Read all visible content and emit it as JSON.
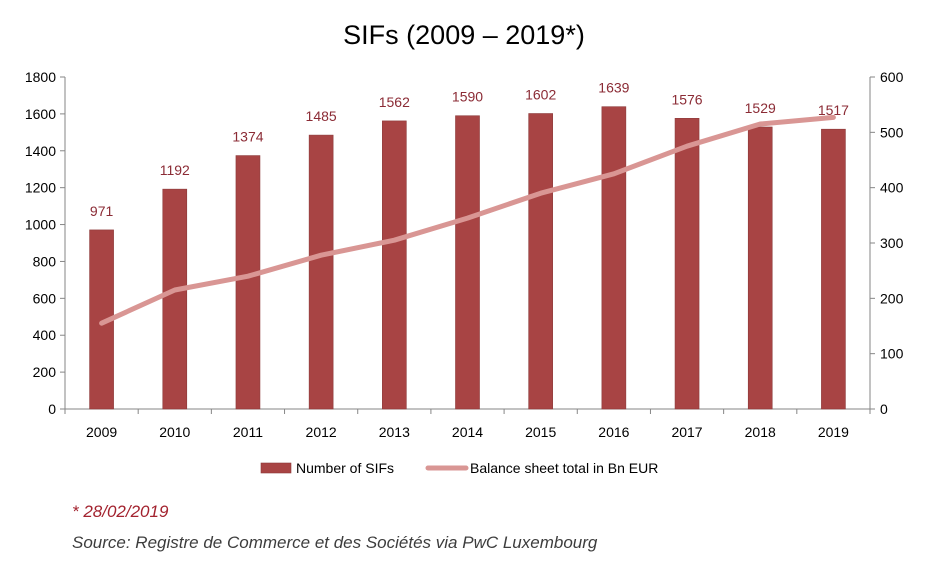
{
  "chart_data": {
    "type": "bar",
    "title": "SIFs (2009 – 2019*)",
    "categories": [
      "2009",
      "2010",
      "2011",
      "2012",
      "2013",
      "2014",
      "2015",
      "2016",
      "2017",
      "2018",
      "2019"
    ],
    "series": [
      {
        "name": "Number of SIFs",
        "type": "bar",
        "axis": "left",
        "color": "#a84444",
        "values": [
          971,
          1192,
          1374,
          1485,
          1562,
          1590,
          1602,
          1639,
          1576,
          1529,
          1517
        ]
      },
      {
        "name": "Balance sheet total in Bn EUR",
        "type": "line",
        "axis": "right",
        "color": "#d99694",
        "values": [
          155,
          215,
          240,
          278,
          305,
          345,
          390,
          425,
          475,
          515,
          527
        ]
      }
    ],
    "y_left": {
      "min": 0,
      "max": 1800,
      "step": 200,
      "ticks": [
        "0",
        "200",
        "400",
        "600",
        "800",
        "1000",
        "1200",
        "1400",
        "1600",
        "1800"
      ]
    },
    "y_right": {
      "min": 0,
      "max": 600,
      "step": 100,
      "ticks": [
        "0",
        "100",
        "200",
        "300",
        "400",
        "500",
        "600"
      ]
    },
    "data_labels": [
      "971",
      "1192",
      "1374",
      "1485",
      "1562",
      "1590",
      "1602",
      "1639",
      "1576",
      "1529",
      "1517"
    ],
    "data_label_color": "#8b2b35",
    "grid": false,
    "legend_position": "bottom"
  },
  "footnote": "* 28/02/2019",
  "source": "Source:  Registre de Commerce et des Sociétés via PwC Luxembourg"
}
